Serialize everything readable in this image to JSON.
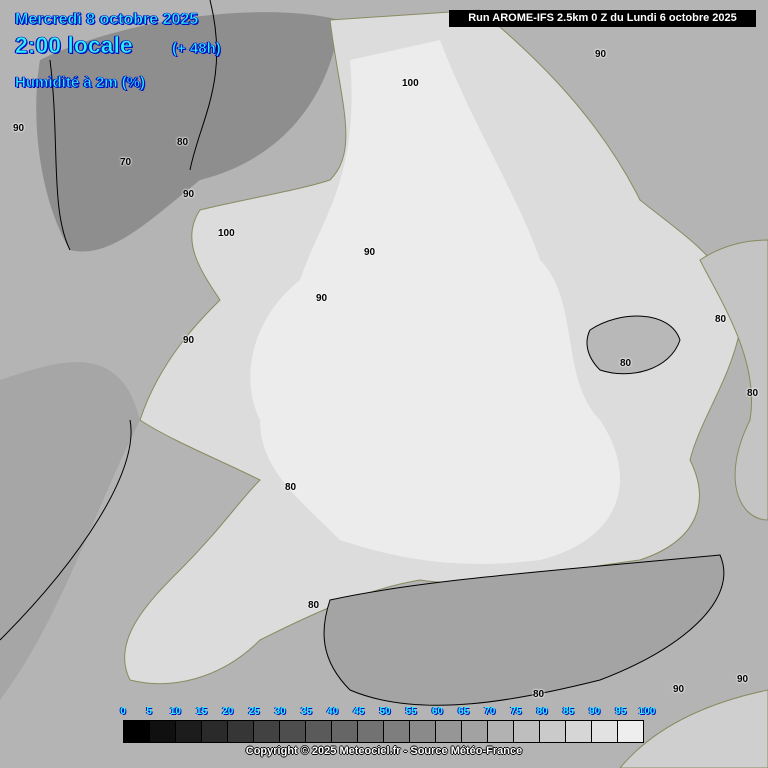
{
  "header": {
    "date": "Mercredi 8 octobre 2025",
    "hour": "2:00 locale",
    "lead": "(+ 48h)",
    "parameter": "Humidité à 2m (%)",
    "run": "Run AROME-IFS 2.5km 0 Z du Lundi 6 octobre 2025"
  },
  "contour_labels": [
    "100",
    "70",
    "80",
    "90",
    "90",
    "100",
    "90",
    "90",
    "90",
    "80",
    "80",
    "80",
    "80",
    "90",
    "80",
    "90",
    "90",
    "80"
  ],
  "legend": {
    "ticks": [
      "0",
      "5",
      "10",
      "15",
      "20",
      "25",
      "30",
      "35",
      "40",
      "45",
      "50",
      "55",
      "60",
      "65",
      "70",
      "75",
      "80",
      "85",
      "90",
      "95",
      "100"
    ],
    "colors": [
      "#000000",
      "#101010",
      "#1c1c1c",
      "#2a2a2a",
      "#363636",
      "#424242",
      "#4e4e4e",
      "#5a5a5a",
      "#666666",
      "#727272",
      "#7e7e7e",
      "#8a8a8a",
      "#969696",
      "#a2a2a2",
      "#b2b2b2",
      "#bebebe",
      "#cacaca",
      "#d6d6d6",
      "#e2e2e2",
      "#eeeeee"
    ]
  },
  "copyright": "Copyright © 2025 Meteociel.fr - Source Météo-France"
}
